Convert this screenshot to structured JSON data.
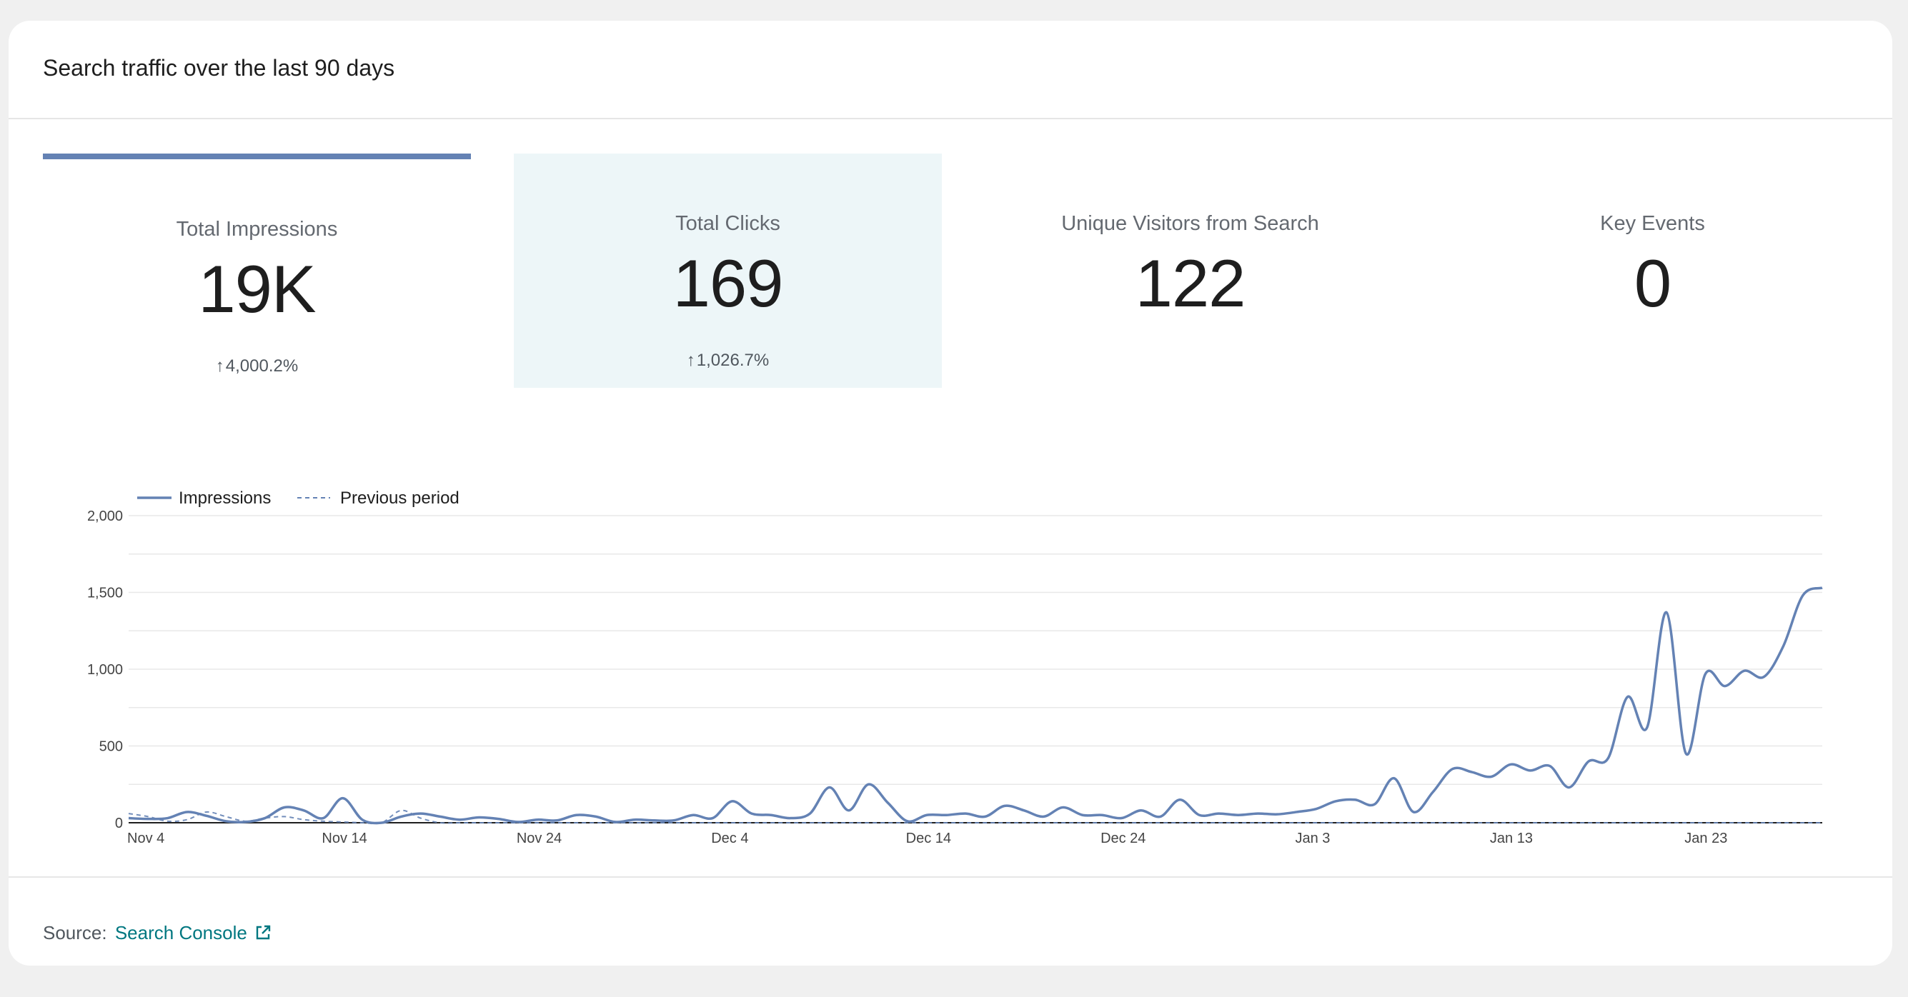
{
  "card": {
    "title": "Search traffic over the last 90 days"
  },
  "tiles": [
    {
      "label": "Total Impressions",
      "value": "19K",
      "change": "4,000.2%"
    },
    {
      "label": "Total Clicks",
      "value": "169",
      "change": "1,026.7%"
    },
    {
      "label": "Unique Visitors from Search",
      "value": "122",
      "change": ""
    },
    {
      "label": "Key Events",
      "value": "0",
      "change": ""
    }
  ],
  "footer": {
    "source_label": "Source:",
    "source_link": "Search Console"
  },
  "colors": {
    "accent": "#6482b4",
    "selected_tile_bg": "#edf6f8",
    "link": "#007780"
  },
  "chart_data": {
    "type": "line",
    "legend": [
      "Impressions",
      "Previous period"
    ],
    "legend_position": "top-left",
    "ylim": [
      0,
      2000
    ],
    "yticks": [
      "0",
      "500",
      "1,000",
      "1,500",
      "2,000"
    ],
    "xticks": [
      "Nov 4",
      "Nov 14",
      "Nov 24",
      "Dec 4",
      "Dec 14",
      "Dec 24",
      "Jan 3",
      "Jan 13",
      "Jan 23"
    ],
    "grid": true,
    "series": [
      {
        "name": "Impressions",
        "style": "solid",
        "color": "#6482b4",
        "values": [
          30,
          25,
          30,
          70,
          45,
          10,
          5,
          30,
          100,
          80,
          30,
          160,
          20,
          0,
          40,
          60,
          40,
          20,
          35,
          25,
          5,
          20,
          15,
          50,
          40,
          5,
          20,
          15,
          15,
          50,
          30,
          140,
          60,
          50,
          30,
          60,
          230,
          80,
          250,
          130,
          10,
          50,
          50,
          60,
          40,
          110,
          80,
          40,
          100,
          50,
          50,
          30,
          80,
          40,
          150,
          50,
          60,
          50,
          60,
          55,
          70,
          90,
          140,
          150,
          120,
          290,
          70,
          200,
          350,
          330,
          300,
          380,
          340,
          370,
          230,
          400,
          420,
          820,
          620,
          1370,
          450,
          970,
          890,
          990,
          950,
          1150,
          1480,
          1530
        ]
      },
      {
        "name": "Previous period",
        "style": "dashed",
        "color": "#6482b4",
        "values": [
          60,
          40,
          10,
          20,
          70,
          40,
          10,
          30,
          40,
          20,
          10,
          5,
          0,
          0,
          80,
          30,
          0,
          0,
          0,
          0,
          0,
          0,
          0,
          0,
          0,
          0,
          0,
          0,
          0,
          0,
          0,
          0,
          0,
          0,
          0,
          0,
          0,
          0,
          0,
          0,
          0,
          0,
          0,
          0,
          0,
          0,
          0,
          0,
          0,
          0,
          0,
          0,
          0,
          0,
          0,
          0,
          0,
          0,
          0,
          0,
          0,
          0,
          0,
          0,
          0,
          0,
          0,
          0,
          0,
          0,
          0,
          0,
          0,
          0,
          0,
          0,
          0,
          0,
          0,
          0,
          0,
          0,
          0,
          0,
          0,
          0,
          0,
          0
        ]
      }
    ]
  }
}
